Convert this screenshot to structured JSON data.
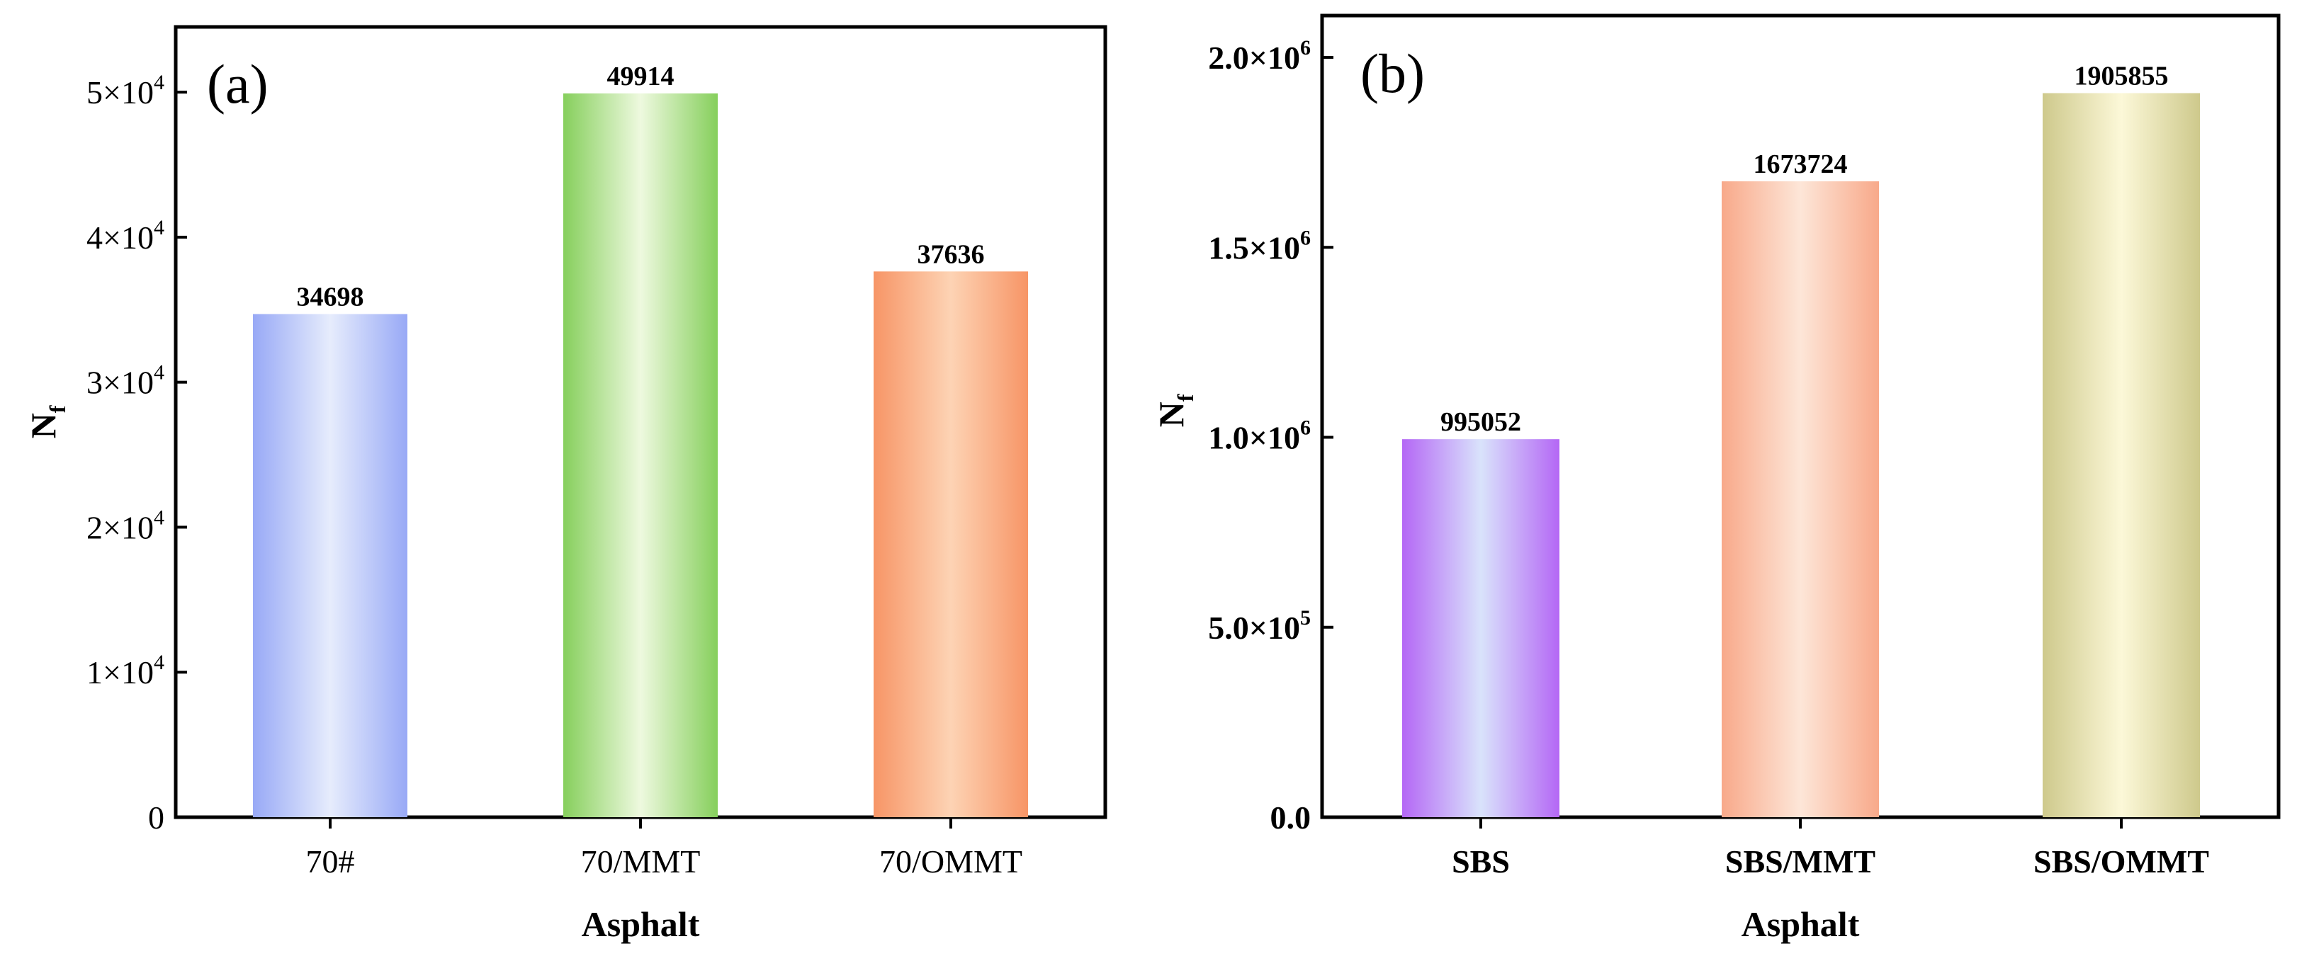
{
  "chart_data": [
    {
      "type": "bar",
      "panel_label": "(a)",
      "categories": [
        "70#",
        "70/MMT",
        "70/OMMT"
      ],
      "values": [
        34698,
        49914,
        37636
      ],
      "data_labels": [
        "34698",
        "49914",
        "37636"
      ],
      "ylim": [
        0,
        54500
      ],
      "yticks": [
        0,
        10000,
        20000,
        30000,
        40000,
        50000
      ],
      "ytick_labels": [
        {
          "base": "0",
          "exp": ""
        },
        {
          "base": "1×10",
          "exp": "4"
        },
        {
          "base": "2×10",
          "exp": "4"
        },
        {
          "base": "3×10",
          "exp": "4"
        },
        {
          "base": "4×10",
          "exp": "4"
        },
        {
          "base": "5×10",
          "exp": "4"
        }
      ],
      "xlabel": "Asphalt",
      "ylabel": {
        "base": "N",
        "sub": "f"
      },
      "colors": [
        {
          "edge": "#98a9f6",
          "mid": "#e6ecfc"
        },
        {
          "edge": "#86cf5c",
          "mid": "#eef9df"
        },
        {
          "edge": "#f79566",
          "mid": "#fdd3b4"
        }
      ]
    },
    {
      "type": "bar",
      "panel_label": "(b)",
      "categories": [
        "SBS",
        "SBS/MMT",
        "SBS/OMMT"
      ],
      "values": [
        995052,
        1673724,
        1905855
      ],
      "data_labels": [
        "995052",
        "1673724",
        "1905855"
      ],
      "ylim": [
        0,
        2110000
      ],
      "yticks": [
        0,
        500000,
        1000000,
        1500000,
        2000000
      ],
      "ytick_labels": [
        {
          "base": "0.0",
          "exp": ""
        },
        {
          "base": "5.0×10",
          "exp": "5"
        },
        {
          "base": "1.0×10",
          "exp": "6"
        },
        {
          "base": "1.5×10",
          "exp": "6"
        },
        {
          "base": "2.0×10",
          "exp": "6"
        }
      ],
      "xlabel": "Asphalt",
      "ylabel": {
        "base": "N",
        "sub": "f"
      },
      "colors": [
        {
          "edge": "#b467f5",
          "mid": "#d9e3fb"
        },
        {
          "edge": "#f8a98a",
          "mid": "#fde6d8"
        },
        {
          "edge": "#cec98c",
          "mid": "#fcf8d8"
        }
      ]
    }
  ]
}
